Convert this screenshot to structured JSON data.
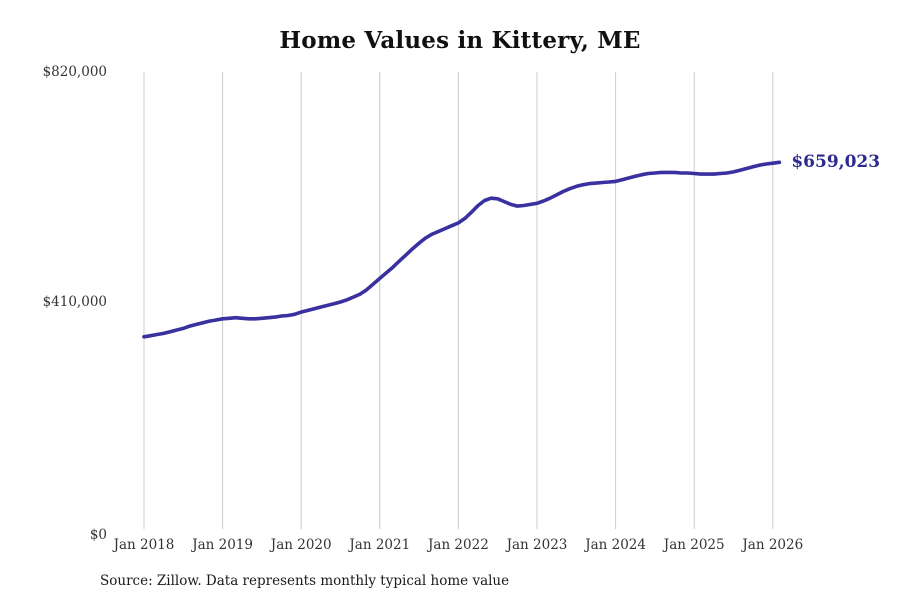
{
  "title": "Home Values in Kittery, ME",
  "source_note": "Source: Zillow. Data represents monthly typical home value",
  "colors": {
    "line": "#39319f",
    "end_label": "#2b2a8f",
    "gridline": "#cbcbcb",
    "axis_text": "#333333",
    "title_text": "#111111",
    "source_text": "#1a1a1a",
    "background": "#ffffff"
  },
  "chart_data": {
    "type": "line",
    "title": "Home Values in Kittery, ME",
    "xlabel": "",
    "ylabel": "",
    "ylim": [
      0,
      820000
    ],
    "grid": "vertical-only",
    "legend": "none",
    "end_label": "$659,023",
    "end_value": 659023,
    "y_ticks": [
      0,
      410000,
      820000
    ],
    "y_tick_labels": [
      "$0",
      "$410,000",
      "$820,000"
    ],
    "x_tick_labels": [
      "Jan 2018",
      "Jan 2019",
      "Jan 2020",
      "Jan 2021",
      "Jan 2022",
      "Jan 2023",
      "Jan 2024",
      "Jan 2025",
      "Jan 2026"
    ],
    "x": [
      "Jan 2018",
      "Feb 2018",
      "Mar 2018",
      "Apr 2018",
      "May 2018",
      "Jun 2018",
      "Jul 2018",
      "Aug 2018",
      "Sep 2018",
      "Oct 2018",
      "Nov 2018",
      "Dec 2018",
      "Jan 2019",
      "Feb 2019",
      "Mar 2019",
      "Apr 2019",
      "May 2019",
      "Jun 2019",
      "Jul 2019",
      "Aug 2019",
      "Sep 2019",
      "Oct 2019",
      "Nov 2019",
      "Dec 2019",
      "Jan 2020",
      "Feb 2020",
      "Mar 2020",
      "Apr 2020",
      "May 2020",
      "Jun 2020",
      "Jul 2020",
      "Aug 2020",
      "Sep 2020",
      "Oct 2020",
      "Nov 2020",
      "Dec 2020",
      "Jan 2021",
      "Feb 2021",
      "Mar 2021",
      "Apr 2021",
      "May 2021",
      "Jun 2021",
      "Jul 2021",
      "Aug 2021",
      "Sep 2021",
      "Oct 2021",
      "Nov 2021",
      "Dec 2021",
      "Jan 2022",
      "Feb 2022",
      "Mar 2022",
      "Apr 2022",
      "May 2022",
      "Jun 2022",
      "Jul 2022",
      "Aug 2022",
      "Sep 2022",
      "Oct 2022",
      "Nov 2022",
      "Dec 2022",
      "Jan 2023",
      "Feb 2023",
      "Mar 2023",
      "Apr 2023",
      "May 2023",
      "Jun 2023",
      "Jul 2023",
      "Aug 2023",
      "Sep 2023",
      "Oct 2023",
      "Nov 2023",
      "Dec 2023",
      "Jan 2024",
      "Feb 2024",
      "Mar 2024",
      "Apr 2024",
      "May 2024",
      "Jun 2024",
      "Jul 2024",
      "Aug 2024",
      "Sep 2024",
      "Oct 2024",
      "Nov 2024",
      "Dec 2024",
      "Jan 2025",
      "Feb 2025",
      "Mar 2025",
      "Apr 2025",
      "May 2025",
      "Jun 2025",
      "Jul 2025",
      "Aug 2025",
      "Sep 2025",
      "Oct 2025",
      "Nov 2025",
      "Dec 2025",
      "Jan 2026",
      "Feb 2026"
    ],
    "values": [
      348000,
      350000,
      352000,
      354000,
      357000,
      360000,
      363000,
      367000,
      370000,
      373000,
      376000,
      378000,
      380000,
      381000,
      382000,
      381000,
      380000,
      380000,
      381000,
      382000,
      383000,
      385000,
      386000,
      388000,
      392000,
      395000,
      398000,
      401000,
      404000,
      407000,
      410000,
      414000,
      419000,
      424000,
      432000,
      442000,
      452000,
      462000,
      472000,
      483000,
      494000,
      505000,
      515000,
      524000,
      531000,
      536000,
      541000,
      546000,
      551000,
      559000,
      570000,
      582000,
      591000,
      595000,
      594000,
      589000,
      584000,
      581000,
      582000,
      584000,
      586000,
      590000,
      595000,
      601000,
      607000,
      612000,
      616000,
      619000,
      621000,
      622000,
      623000,
      624000,
      625000,
      628000,
      631000,
      634000,
      637000,
      639000,
      640000,
      641000,
      641000,
      641000,
      640000,
      640000,
      639000,
      638000,
      638000,
      638000,
      639000,
      640000,
      642000,
      645000,
      648000,
      651000,
      654000,
      656000,
      657500,
      659023
    ]
  }
}
